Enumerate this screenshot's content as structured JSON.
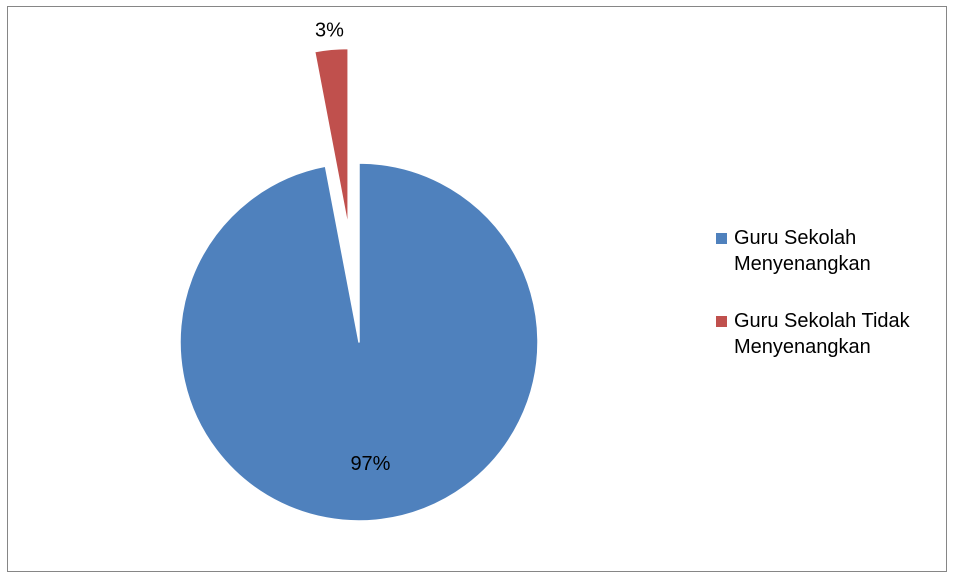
{
  "chart_data": {
    "type": "pie",
    "categories": [
      "Guru Sekolah Menyenangkan",
      "Guru Sekolah Tidak Menyenangkan"
    ],
    "values": [
      97,
      3
    ],
    "data_labels": [
      "97%",
      "3%"
    ],
    "colors": [
      "#4F81BD",
      "#C0504D"
    ],
    "legend": {
      "placement": "right",
      "entries": [
        {
          "lines": [
            "Guru Sekolah",
            "Menyenangkan"
          ],
          "color": "#4F81BD"
        },
        {
          "lines": [
            "Guru Sekolah Tidak",
            "Menyenangkan"
          ],
          "color": "#C0504D"
        }
      ]
    },
    "exploded": [
      false,
      true
    ]
  }
}
